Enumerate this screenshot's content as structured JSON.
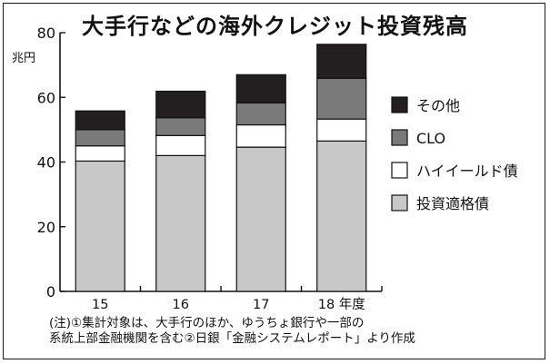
{
  "chart_data": {
    "type": "bar",
    "stacked": true,
    "title": "大手行などの海外クレジット投資残高",
    "unit": "兆円",
    "categories": [
      "15",
      "16",
      "17",
      "18 年度"
    ],
    "ylim": [
      0,
      80
    ],
    "yticks": [
      "0",
      "20",
      "40",
      "60",
      "80"
    ],
    "series": [
      {
        "name": "投資適格債",
        "color": "#c8c8c8",
        "values": [
          40.3,
          42.0,
          44.6,
          46.5
        ]
      },
      {
        "name": "ハイイールド債",
        "color": "#ffffff",
        "values": [
          4.7,
          6.2,
          6.9,
          6.8
        ]
      },
      {
        "name": "CLO",
        "color": "#7a7a7a",
        "values": [
          5.0,
          5.5,
          6.8,
          12.6
        ]
      },
      {
        "name": "その他",
        "color": "#231f20",
        "values": [
          5.8,
          8.2,
          8.7,
          10.5
        ]
      }
    ],
    "legend_order": [
      "その他",
      "CLO",
      "ハイイールド債",
      "投資適格債"
    ],
    "legend_position": "right",
    "grid": false
  },
  "note": {
    "line1": "(注)①集計対象は、大手行のほか、ゆうちょ銀行や一部の",
    "line2": "系統上部金融機関を含む②日銀「金融システムレポート」より作成"
  }
}
